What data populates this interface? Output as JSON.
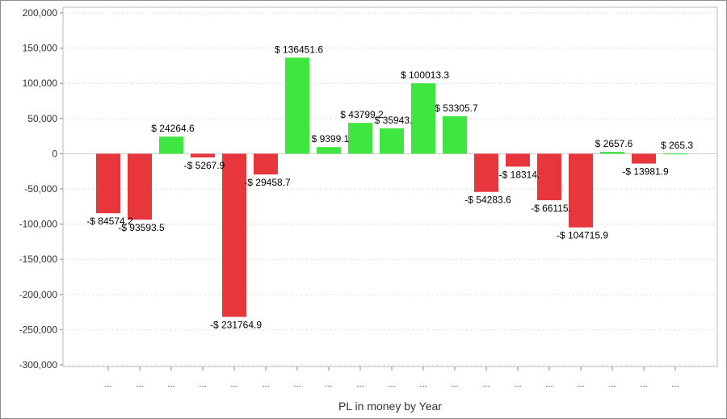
{
  "chart_data": {
    "type": "bar",
    "xlabel": "PL in money by Year",
    "ylabel": "",
    "ylim": [
      -300000,
      200000
    ],
    "yticks": [
      200000,
      150000,
      100000,
      50000,
      0,
      -50000,
      -100000,
      -150000,
      -200000,
      -250000,
      -300000
    ],
    "ytick_labels": [
      "200,000",
      "150,000",
      "100,000",
      "50,000",
      "0",
      "-50,000",
      "-100,000",
      "-150,000",
      "-200,000",
      "-250,000",
      "-300,000"
    ],
    "grid": true,
    "categories": [
      "...",
      "...",
      "...",
      "...",
      "...",
      "...",
      "...",
      "...",
      "...",
      "...",
      "...",
      "...",
      "...",
      "...",
      "...",
      "...",
      "...",
      "...",
      "..."
    ],
    "values": [
      -84574.2,
      -93593.5,
      24264.6,
      -5267.9,
      -231764.9,
      -29458.7,
      136451.6,
      9399.1,
      43799.2,
      35943.0,
      100013.3,
      53305.7,
      -54283.6,
      -18314.0,
      -66115.0,
      -104715.9,
      2657.6,
      -13981.9,
      265.3
    ],
    "data_labels": [
      "-$ 84574.2",
      "-$ 93593.5",
      "$ 24264.6",
      "-$ 5267.9",
      "-$ 231764.9",
      "-$ 29458.7",
      "$ 136451.6",
      "$ 9399.1",
      "$ 43799.2",
      "$ 35943.",
      "$ 100013.3",
      "$ 53305.7",
      "-$ 54283.6",
      "-$ 18314.",
      "-$ 66115.",
      "-$ 104715.9",
      "$ 2657.6",
      "-$ 13981.9",
      "$ 265.3"
    ],
    "colors": {
      "positive": "#3fe63f",
      "negative": "#e8363d"
    }
  }
}
